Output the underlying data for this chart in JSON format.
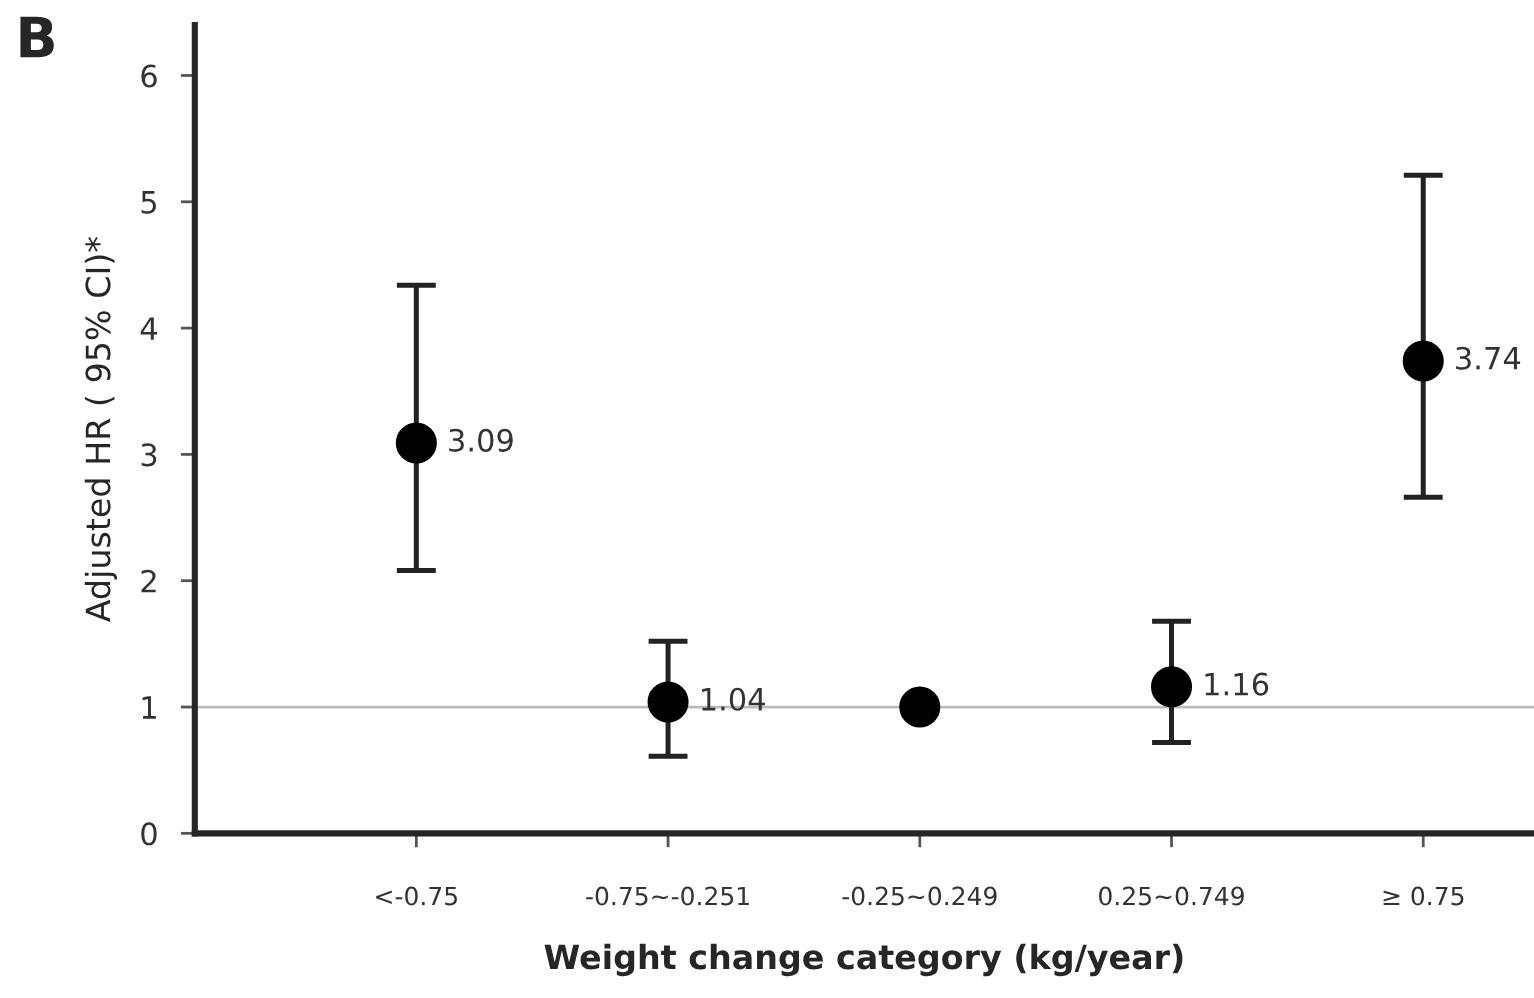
{
  "chart_data": {
    "type": "scatter",
    "xlabel": "Weight change category (kg/year)",
    "ylabel": "Adjusted HR ( 95% CI)*",
    "annotations": [
      "B"
    ],
    "categories": [
      "<-0.75",
      "-0.75~-0.251",
      "-0.25~0.249",
      "0.25~0.749",
      "≥ 0.75"
    ],
    "series": [
      {
        "color": "#000000",
        "values": [
          3.09,
          1.04,
          1,
          1.16,
          3.74
        ],
        "errors": [
          [
            2.08,
            4.34
          ],
          [
            0.61,
            1.52
          ],
          null,
          [
            0.72,
            1.68
          ],
          [
            2.66,
            5.21
          ]
        ],
        "value_labels": [
          "3.09",
          "1.04",
          null,
          "1.16",
          "3.74"
        ]
      }
    ],
    "ylim": [
      0,
      6.4
    ],
    "yticks": [
      0,
      1,
      2,
      3,
      4,
      5,
      6
    ],
    "ref_lines": [
      {
        "axis": "y",
        "value": 1,
        "color": "#bbbbbb"
      }
    ],
    "marker": "circle",
    "grid": false,
    "legend": false
  }
}
